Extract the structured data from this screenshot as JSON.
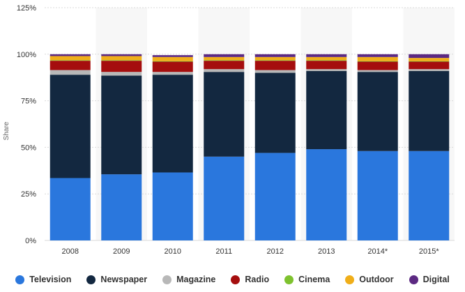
{
  "chart_data": {
    "type": "bar",
    "stacked": true,
    "categories": [
      "2008",
      "2009",
      "2010",
      "2011",
      "2012",
      "2013",
      "2014*",
      "2015*"
    ],
    "ylabel": "Share",
    "xlabel": "",
    "title": "",
    "ylim": [
      0,
      125
    ],
    "yticks": [
      0,
      25,
      50,
      75,
      100,
      125
    ],
    "ytick_labels": [
      "0%",
      "25%",
      "50%",
      "75%",
      "100%",
      "125%"
    ],
    "grid": true,
    "legend_position": "bottom",
    "series": [
      {
        "name": "Television",
        "color": "#2a77dd",
        "values": [
          33.5,
          35.5,
          36.5,
          45,
          47,
          49,
          48,
          48
        ]
      },
      {
        "name": "Newspaper",
        "color": "#132840",
        "values": [
          55.5,
          53,
          52.5,
          45.5,
          43,
          42,
          42.5,
          43
        ]
      },
      {
        "name": "Magazine",
        "color": "#b8b8b8",
        "values": [
          2.5,
          2,
          1.5,
          1.5,
          1.5,
          1,
          1,
          1
        ]
      },
      {
        "name": "Radio",
        "color": "#a50e0e",
        "values": [
          5,
          6,
          5.5,
          4.5,
          5,
          4.5,
          4.5,
          4
        ]
      },
      {
        "name": "Cinema",
        "color": "#7ec22e",
        "values": [
          0.3,
          0.3,
          0.3,
          0.3,
          0.3,
          0.3,
          0.3,
          0.3
        ]
      },
      {
        "name": "Outdoor",
        "color": "#f0ae19",
        "values": [
          2.2,
          2.2,
          2.2,
          1.7,
          1.7,
          1.7,
          2.2,
          1.7
        ]
      },
      {
        "name": "Digital",
        "color": "#5c2982",
        "values": [
          1,
          1,
          1,
          1.5,
          1.5,
          1.5,
          1.5,
          2
        ]
      }
    ]
  }
}
